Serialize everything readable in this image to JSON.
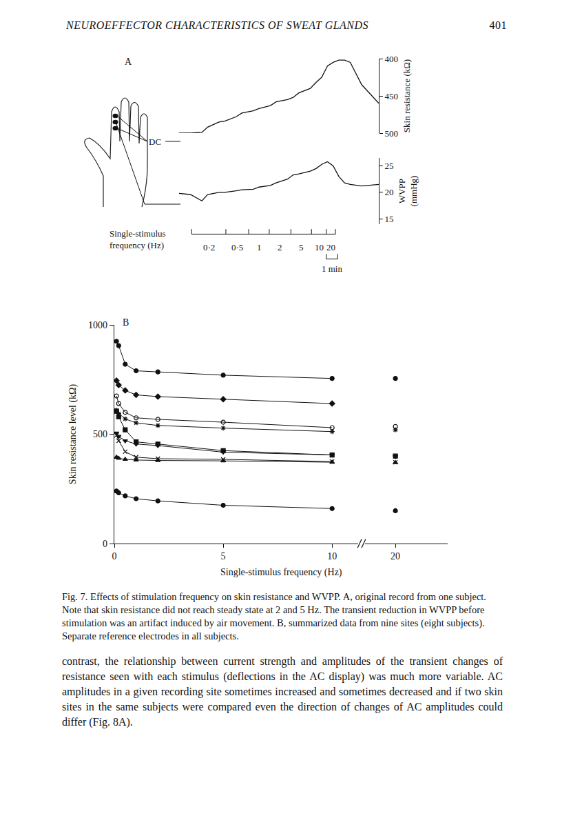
{
  "header": {
    "running_title": "NEUROEFFECTOR CHARACTERISTICS OF SWEAT GLANDS",
    "page_number": "401"
  },
  "chart_data": [
    {
      "type": "line",
      "panel": "A",
      "x": [
        0,
        1,
        2,
        2.5,
        3.5,
        4,
        5,
        5.5,
        6.5,
        7,
        8,
        8.5,
        9.5,
        10,
        10.5,
        11.5,
        12,
        12.5,
        13,
        13.5,
        14,
        14.5,
        15,
        16,
        17.5
      ],
      "xlim": [
        0,
        17.5
      ],
      "tick_labels": "y",
      "grid": false,
      "ylabel": "Skin resistance (kΩ)",
      "ylim": [
        500,
        400
      ],
      "yticks": [
        400,
        450,
        500
      ],
      "y2label": "WVPP\n(mmHg)",
      "y2lim": [
        14,
        26.5
      ],
      "y2ticks": [
        15,
        20,
        25
      ],
      "series": [
        {
          "color": "#111111",
          "values": [
            500,
            500,
            499,
            492,
            485,
            484,
            478,
            473,
            470,
            467,
            463,
            458,
            455,
            452,
            446,
            440,
            432,
            425,
            410,
            405,
            402,
            402,
            405,
            435,
            460
          ]
        },
        {
          "color": "#111111",
          "axis": "y2",
          "values": [
            19.8,
            19.6,
            18.4,
            19.6,
            20,
            20,
            20.3,
            20.5,
            20.6,
            21,
            21.3,
            21.8,
            22.5,
            23.3,
            23.5,
            24,
            24.5,
            25.3,
            25.8,
            25,
            23,
            21.8,
            21.5,
            21.2,
            21.5
          ]
        }
      ],
      "dc_label": "DC",
      "stimulus_label": "Single-stimulus\nfrequency (Hz)",
      "stimulus": [
        {
          "label": "0·2",
          "start": 1.1,
          "end": 4.1
        },
        {
          "label": "0·5",
          "start": 4.1,
          "end": 6.1
        },
        {
          "label": "1",
          "start": 6.1,
          "end": 7.9
        },
        {
          "label": "2",
          "start": 7.9,
          "end": 9.8
        },
        {
          "label": "5",
          "start": 9.8,
          "end": 11.6
        },
        {
          "label": "10",
          "start": 11.6,
          "end": 12.9
        },
        {
          "label": "20",
          "start": 12.9,
          "end": 13.7
        }
      ],
      "scale_bar": {
        "label": "1 min",
        "start": 12.9,
        "end": 13.9
      }
    },
    {
      "type": "line",
      "panel": "B",
      "xlabel": "Single-stimulus frequency (Hz)",
      "ylabel": "Skin resistance level (kΩ)",
      "x": [
        0.1,
        0.2,
        0.5,
        1,
        2,
        5,
        10,
        20
      ],
      "xlim": [
        [
          0,
          11.2
        ],
        [
          18.6,
          22.4
        ]
      ],
      "xticks": [
        0,
        5,
        10,
        20
      ],
      "ylim": [
        0,
        1000
      ],
      "yticks": [
        0,
        500,
        1000
      ],
      "grid": false,
      "series": [
        {
          "color": "#111111",
          "marker": "circle",
          "values": [
            925,
            905,
            820,
            790,
            785,
            770,
            755,
            755
          ]
        },
        {
          "color": "#111111",
          "marker": "diamond",
          "values": [
            745,
            725,
            700,
            680,
            672,
            660,
            640,
            null
          ]
        },
        {
          "color": "#111111",
          "marker": "circle-open",
          "values": [
            675,
            640,
            600,
            575,
            568,
            555,
            530,
            535
          ]
        },
        {
          "color": "#111111",
          "marker": "asterisk",
          "values": [
            610,
            595,
            570,
            552,
            540,
            528,
            512,
            520
          ]
        },
        {
          "color": "#111111",
          "marker": "square",
          "values": [
            605,
            580,
            520,
            465,
            455,
            425,
            405,
            400
          ]
        },
        {
          "color": "#111111",
          "marker": "triangle-down",
          "values": [
            505,
            490,
            470,
            455,
            448,
            418,
            405,
            398
          ]
        },
        {
          "color": "#111111",
          "marker": "x",
          "values": [
            495,
            470,
            420,
            395,
            388,
            385,
            375,
            372
          ]
        },
        {
          "color": "#111111",
          "marker": "triangle-up",
          "values": [
            395,
            390,
            385,
            382,
            380,
            378,
            372,
            370
          ]
        },
        {
          "color": "#111111",
          "marker": "circle",
          "values": [
            240,
            232,
            218,
            205,
            195,
            175,
            160,
            150
          ]
        }
      ]
    }
  ],
  "caption": "Fig. 7. Effects of stimulation frequency on skin resistance and WVPP. A, original record from one subject. Note that skin resistance did not reach steady state at 2 and 5 Hz. The transient reduction in WVPP before stimulation was an artifact induced by air movement. B, summarized data from nine sites (eight subjects). Separate reference electrodes in all subjects.",
  "body": "contrast, the relationship between current strength and amplitudes of the transient changes of resistance seen with each stimulus (deflections in the AC display) was much more variable. AC amplitudes in a given recording site sometimes increased and sometimes decreased and if two skin sites in the same subjects were compared even the direction of changes of AC amplitudes could differ (Fig. 8A)."
}
